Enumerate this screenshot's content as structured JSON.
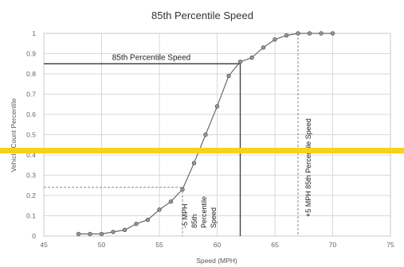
{
  "chart_data": {
    "type": "line",
    "title": "85th Percentile Speed",
    "xlabel": "Speed (MPH)",
    "ylabel": "Vehicle Count Percentile",
    "xlim": [
      45,
      75
    ],
    "ylim": [
      0,
      1
    ],
    "x_ticks": [
      "45",
      "50",
      "55",
      "60",
      "65",
      "70",
      "75"
    ],
    "y_ticks": [
      "0",
      "0.1",
      "0.2",
      "0.3",
      "0.4",
      "0.5",
      "0.6",
      "0.7",
      "0.8",
      "0.9",
      "1"
    ],
    "grid": true,
    "series": [
      {
        "x": [
          48,
          49,
          50,
          51,
          52,
          53,
          54,
          55,
          56,
          57,
          58,
          59,
          60,
          61,
          62,
          63,
          64,
          65,
          66,
          67,
          68,
          69,
          70
        ],
        "y": [
          0.01,
          0.01,
          0.01,
          0.02,
          0.03,
          0.06,
          0.08,
          0.13,
          0.17,
          0.23,
          0.36,
          0.5,
          0.64,
          0.79,
          0.86,
          0.88,
          0.93,
          0.97,
          0.99,
          1.0,
          1.0,
          1.0,
          1.0
        ]
      }
    ],
    "reference_lines": {
      "percentile_85_y": 0.85,
      "speed_85": 62,
      "speed_minus_5": 57,
      "speed_plus_5": 67
    },
    "annotations": {
      "percentile_label": "85th Percentile Speed",
      "minus_label": [
        "-5 MPH",
        "85th",
        "Percentile",
        "Speed"
      ],
      "plus_label": "+5 MPH 85th Percentile Speed"
    }
  },
  "overlay": {
    "highlight_color": "#f7d21a"
  }
}
